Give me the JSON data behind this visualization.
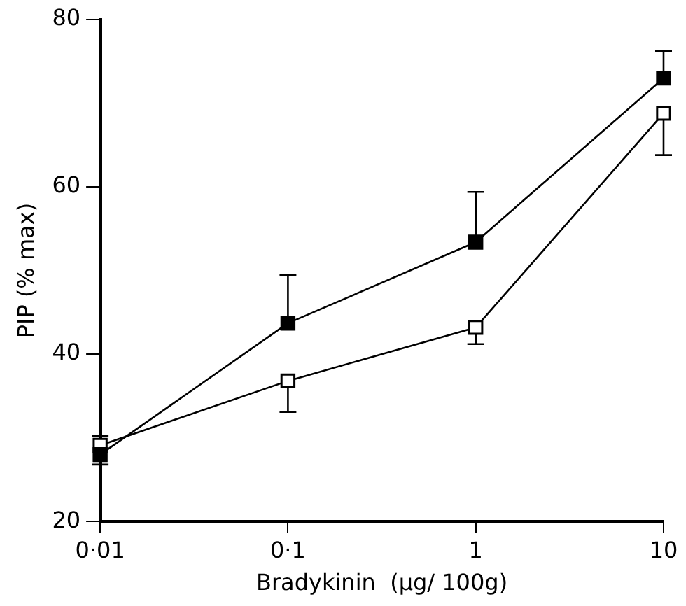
{
  "chart_data": {
    "type": "line",
    "xlabel": "Bradykinin  (µg/ 100g)",
    "ylabel": "PIP (% max)",
    "categories": [
      "0·01",
      "0·1",
      "1",
      "10"
    ],
    "series": [
      {
        "color": "#000000",
        "values": [
          28,
          43.7,
          53.4,
          73
        ],
        "errors": [
          [
            26.8,
            28
          ],
          [
            43.7,
            49.5
          ],
          [
            53.4,
            59.4
          ],
          [
            73,
            76.2
          ]
        ]
      },
      {
        "color": "#000000",
        "values": [
          29.1,
          36.8,
          43.2,
          68.8
        ],
        "errors": [
          [
            29.1,
            30.2
          ],
          [
            33.1,
            36.8
          ],
          [
            41.2,
            43.2
          ],
          [
            63.8,
            68.8
          ]
        ]
      }
    ],
    "ylim": [
      20,
      80
    ],
    "yticks": [
      20,
      40,
      60,
      80
    ],
    "grid": false,
    "legend": false,
    "marker": "square",
    "line_style": "solid"
  }
}
